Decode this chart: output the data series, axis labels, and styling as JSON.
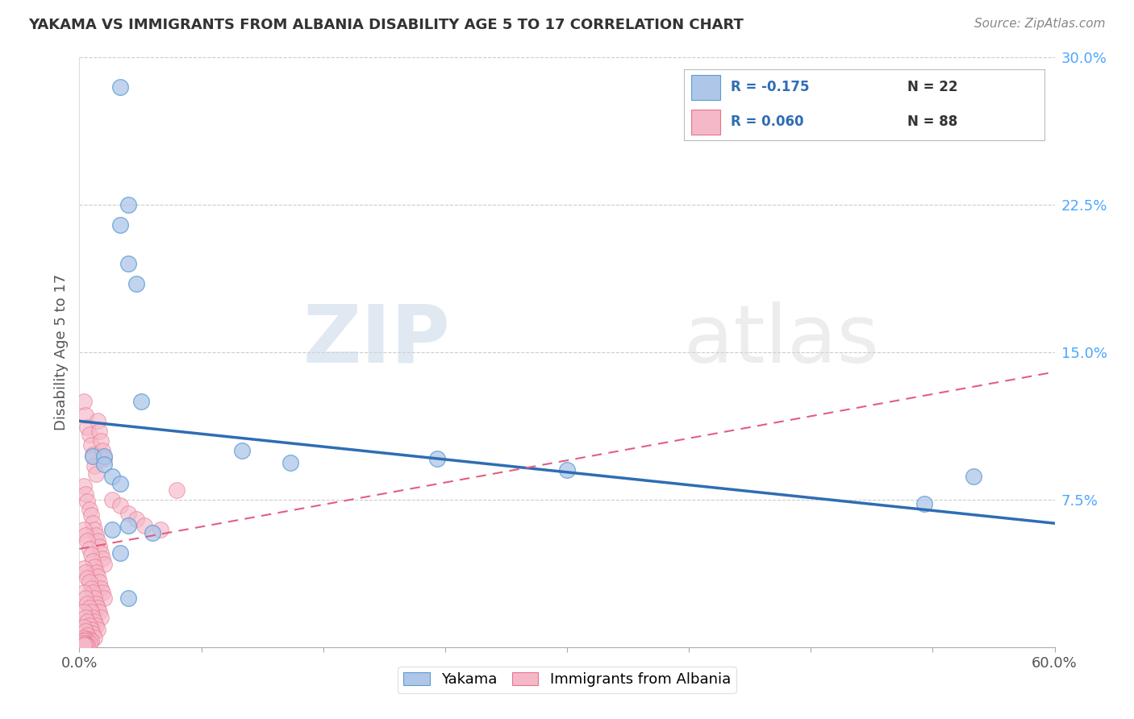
{
  "title": "YAKAMA VS IMMIGRANTS FROM ALBANIA DISABILITY AGE 5 TO 17 CORRELATION CHART",
  "source": "Source: ZipAtlas.com",
  "ylabel": "Disability Age 5 to 17",
  "xlim": [
    0.0,
    0.6
  ],
  "ylim": [
    0.0,
    0.3
  ],
  "yticks_right": [
    0.075,
    0.15,
    0.225,
    0.3
  ],
  "ytick_labels_right": [
    "7.5%",
    "15.0%",
    "22.5%",
    "30.0%"
  ],
  "yakama_R": -0.175,
  "yakama_N": 22,
  "albania_R": 0.06,
  "albania_N": 88,
  "yakama_color": "#aec6e8",
  "albania_color": "#f5b8c8",
  "yakama_edge_color": "#5b9bd5",
  "albania_edge_color": "#e8748a",
  "yakama_line_color": "#2e6db4",
  "albania_line_color": "#e06080",
  "watermark_zip": "ZIP",
  "watermark_atlas": "atlas",
  "legend_yakama_label": "Yakama",
  "legend_albania_label": "Immigrants from Albania",
  "yakama_x": [
    0.025,
    0.025,
    0.03,
    0.03,
    0.035,
    0.038,
    0.008,
    0.015,
    0.1,
    0.13,
    0.22,
    0.3,
    0.55,
    0.52,
    0.015,
    0.02,
    0.025,
    0.02,
    0.025,
    0.03,
    0.045,
    0.03
  ],
  "yakama_y": [
    0.285,
    0.215,
    0.225,
    0.195,
    0.185,
    0.125,
    0.097,
    0.097,
    0.1,
    0.094,
    0.096,
    0.09,
    0.087,
    0.073,
    0.093,
    0.087,
    0.083,
    0.06,
    0.048,
    0.062,
    0.058,
    0.025
  ],
  "albania_x": [
    0.003,
    0.004,
    0.005,
    0.006,
    0.007,
    0.008,
    0.009,
    0.01,
    0.011,
    0.012,
    0.013,
    0.014,
    0.015,
    0.003,
    0.004,
    0.005,
    0.006,
    0.007,
    0.008,
    0.009,
    0.01,
    0.011,
    0.012,
    0.013,
    0.014,
    0.015,
    0.003,
    0.004,
    0.005,
    0.006,
    0.007,
    0.008,
    0.009,
    0.01,
    0.011,
    0.012,
    0.013,
    0.014,
    0.015,
    0.003,
    0.004,
    0.005,
    0.006,
    0.007,
    0.008,
    0.009,
    0.01,
    0.011,
    0.012,
    0.013,
    0.003,
    0.004,
    0.005,
    0.006,
    0.007,
    0.008,
    0.009,
    0.01,
    0.011,
    0.003,
    0.004,
    0.005,
    0.006,
    0.007,
    0.008,
    0.009,
    0.003,
    0.004,
    0.005,
    0.006,
    0.007,
    0.003,
    0.004,
    0.005,
    0.006,
    0.003,
    0.004,
    0.005,
    0.003,
    0.004,
    0.003,
    0.02,
    0.025,
    0.03,
    0.035,
    0.04,
    0.05,
    0.06
  ],
  "albania_y": [
    0.125,
    0.118,
    0.112,
    0.108,
    0.103,
    0.098,
    0.092,
    0.088,
    0.115,
    0.11,
    0.105,
    0.1,
    0.096,
    0.082,
    0.078,
    0.074,
    0.07,
    0.067,
    0.063,
    0.06,
    0.057,
    0.054,
    0.051,
    0.048,
    0.045,
    0.042,
    0.06,
    0.057,
    0.054,
    0.05,
    0.047,
    0.044,
    0.041,
    0.038,
    0.036,
    0.033,
    0.03,
    0.028,
    0.025,
    0.04,
    0.038,
    0.035,
    0.033,
    0.03,
    0.028,
    0.025,
    0.022,
    0.02,
    0.018,
    0.015,
    0.028,
    0.025,
    0.022,
    0.02,
    0.018,
    0.015,
    0.013,
    0.011,
    0.009,
    0.018,
    0.015,
    0.013,
    0.011,
    0.009,
    0.007,
    0.005,
    0.01,
    0.008,
    0.006,
    0.004,
    0.003,
    0.005,
    0.004,
    0.003,
    0.002,
    0.003,
    0.002,
    0.001,
    0.002,
    0.001,
    0.001,
    0.075,
    0.072,
    0.068,
    0.065,
    0.062,
    0.06,
    0.08
  ],
  "yakama_trendline": [
    0.115,
    0.063
  ],
  "albania_trendline": [
    0.05,
    0.14
  ],
  "grid_yticks": [
    0.075,
    0.15,
    0.225,
    0.3
  ]
}
